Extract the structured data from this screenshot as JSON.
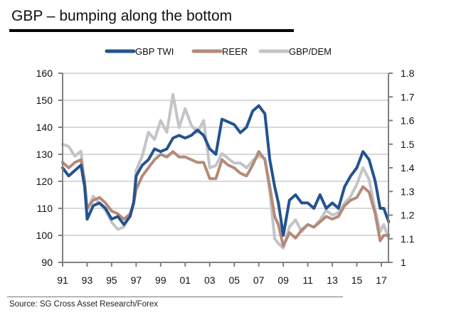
{
  "header": {
    "title": "GBP – bumping along the bottom"
  },
  "footer": {
    "source": "Source: SG Cross Asset Research/Forex"
  },
  "chart_data": {
    "type": "line",
    "title": "GBP – bumping along the bottom",
    "xlabel": "",
    "ylabel": "",
    "grid": true,
    "legend_position": "top-center",
    "x_tick_labels": [
      "91",
      "93",
      "95",
      "97",
      "99",
      "01",
      "03",
      "05",
      "07",
      "09",
      "11",
      "13",
      "15",
      "17"
    ],
    "x_range": [
      1991,
      2017.6
    ],
    "y_left": {
      "range": [
        90,
        160
      ],
      "ticks": [
        "90",
        "100",
        "110",
        "120",
        "130",
        "140",
        "150",
        "160"
      ]
    },
    "y_right": {
      "range": [
        1,
        1.8
      ],
      "ticks": [
        "1",
        "1.1",
        "1.2",
        "1.3",
        "1.4",
        "1.5",
        "1.6",
        "1.7",
        "1.8"
      ]
    },
    "colors": {
      "GBP TWI": "#23538f",
      "REER": "#b48a78",
      "GBP/DEM": "#c3c4c8"
    },
    "x": [
      1991.0,
      1991.5,
      1992.0,
      1992.5,
      1992.8,
      1993.0,
      1993.5,
      1994.0,
      1994.5,
      1995.0,
      1995.5,
      1996.0,
      1996.5,
      1996.8,
      1997.0,
      1997.5,
      1998.0,
      1998.5,
      1999.0,
      1999.5,
      2000.0,
      2000.5,
      2001.0,
      2001.5,
      2002.0,
      2002.5,
      2003.0,
      2003.5,
      2004.0,
      2004.5,
      2005.0,
      2005.5,
      2006.0,
      2006.5,
      2007.0,
      2007.5,
      2007.9,
      2008.3,
      2008.6,
      2009.0,
      2009.5,
      2010.0,
      2010.5,
      2011.0,
      2011.5,
      2012.0,
      2012.5,
      2013.0,
      2013.5,
      2014.0,
      2014.5,
      2015.0,
      2015.5,
      2016.0,
      2016.5,
      2016.9,
      2017.2,
      2017.6
    ],
    "series": [
      {
        "name": "GBP TWI",
        "axis": "left",
        "values": [
          125,
          122,
          124,
          126,
          118,
          106,
          111,
          112,
          110,
          106,
          107,
          104,
          107,
          112,
          122,
          126,
          128,
          132,
          131,
          132,
          136,
          137,
          136,
          137,
          139,
          137,
          132,
          130,
          143,
          142,
          141,
          138,
          140,
          146,
          148,
          145,
          128,
          118,
          112,
          100,
          113,
          115,
          112,
          112,
          110,
          115,
          110,
          112,
          110,
          118,
          122,
          125,
          131,
          128,
          120,
          110,
          110,
          105
        ]
      },
      {
        "name": "REER",
        "axis": "left",
        "values": [
          127,
          125,
          127,
          128,
          120,
          110,
          113,
          114,
          112,
          109,
          108,
          106,
          108,
          112,
          117,
          122,
          125,
          128,
          130,
          129,
          131,
          129,
          129,
          128,
          127,
          127,
          121,
          121,
          128,
          126,
          125,
          123,
          122,
          126,
          131,
          128,
          118,
          107,
          104,
          96,
          101,
          99,
          102,
          104,
          103,
          105,
          107,
          106,
          107,
          111,
          113,
          114,
          118,
          116,
          108,
          98,
          100,
          100
        ]
      },
      {
        "name": "GBP/DEM",
        "axis": "right",
        "values": [
          1.5,
          1.49,
          1.45,
          1.47,
          1.33,
          1.22,
          1.28,
          1.25,
          1.22,
          1.17,
          1.14,
          1.15,
          1.2,
          1.26,
          1.39,
          1.45,
          1.55,
          1.52,
          1.6,
          1.55,
          1.71,
          1.57,
          1.65,
          1.58,
          1.55,
          1.6,
          1.4,
          1.41,
          1.46,
          1.44,
          1.42,
          1.42,
          1.4,
          1.43,
          1.45,
          1.44,
          1.3,
          1.1,
          1.08,
          1.06,
          1.15,
          1.18,
          1.13,
          1.16,
          1.15,
          1.18,
          1.22,
          1.2,
          1.21,
          1.25,
          1.28,
          1.33,
          1.4,
          1.35,
          1.22,
          1.13,
          1.16,
          1.1
        ]
      }
    ]
  }
}
